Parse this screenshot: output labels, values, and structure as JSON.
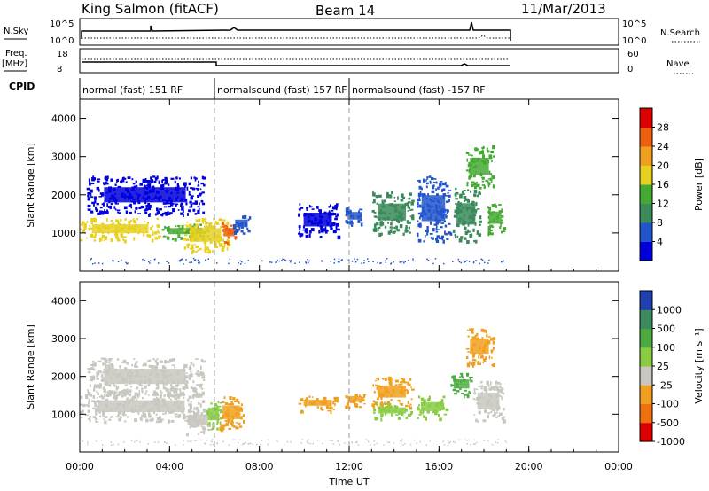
{
  "header": {
    "station": "King Salmon (fitACF)",
    "beam": "Beam 14",
    "date": "11/Mar/2013"
  },
  "summary": {
    "nsky_label": "N.Sky",
    "nsky_ticks": [
      "10^5",
      "10^0"
    ],
    "nsearch_label": "N.Search",
    "nsearch_ticks": [
      "10^5",
      "10^0"
    ],
    "freq_label": "Freq.",
    "freq_unit": "[MHz]",
    "freq_ticks": [
      "18",
      "8"
    ],
    "nave_label": "Nave",
    "nave_ticks": [
      "60",
      "0"
    ],
    "cpid_label": "CPID",
    "cpid_segments": [
      {
        "label": "normal (fast) 151 RF",
        "start": 0,
        "end": 6
      },
      {
        "label": "normalsound (fast) 157 RF",
        "start": 6,
        "end": 12
      },
      {
        "label": "normalsound (fast) -157 RF",
        "start": 12,
        "end": 19
      }
    ]
  },
  "chart_data": [
    {
      "type": "heatmap",
      "name": "power",
      "ylabel": "Slant Range [km]",
      "xlabel": "",
      "xlim": [
        0,
        24
      ],
      "ylim": [
        0,
        4500
      ],
      "yticks": [
        "1000",
        "2000",
        "3000",
        "4000"
      ],
      "colorbar": {
        "label": "Power [dB]",
        "ticks": [
          "4",
          "8",
          "12",
          "16",
          "20",
          "24",
          "28"
        ],
        "colors": [
          "#0000dd",
          "#2255cc",
          "#3a8a5a",
          "#44aa33",
          "#e8d020",
          "#f0a020",
          "#ee6010",
          "#dd0000"
        ]
      },
      "patches": [
        {
          "t0": 0.0,
          "t1": 3.6,
          "r0": 820,
          "r1": 1400,
          "level": 4
        },
        {
          "t0": 3.6,
          "t1": 5.8,
          "r0": 850,
          "r1": 1250,
          "level": 3
        },
        {
          "t0": 4.6,
          "t1": 6.6,
          "r0": 500,
          "r1": 1400,
          "level": 4
        },
        {
          "t0": 6.3,
          "t1": 7.0,
          "r0": 750,
          "r1": 1300,
          "level": 6
        },
        {
          "t0": 0.3,
          "t1": 5.5,
          "r0": 1500,
          "r1": 2500,
          "level": 0
        },
        {
          "t0": 6.8,
          "t1": 7.6,
          "r0": 1000,
          "r1": 1500,
          "level": 1
        },
        {
          "t0": 9.7,
          "t1": 11.5,
          "r0": 900,
          "r1": 1800,
          "level": 0
        },
        {
          "t0": 11.8,
          "t1": 12.7,
          "r0": 1200,
          "r1": 1700,
          "level": 1
        },
        {
          "t0": 13.0,
          "t1": 14.8,
          "r0": 1000,
          "r1": 2100,
          "level": 2
        },
        {
          "t0": 15.0,
          "t1": 16.5,
          "r0": 800,
          "r1": 2500,
          "level": 1
        },
        {
          "t0": 16.6,
          "t1": 17.8,
          "r0": 800,
          "r1": 2200,
          "level": 2
        },
        {
          "t0": 17.2,
          "t1": 18.4,
          "r0": 2200,
          "r1": 3300,
          "level": 3
        },
        {
          "t0": 18.1,
          "t1": 18.9,
          "r0": 1000,
          "r1": 1800,
          "level": 3
        }
      ]
    },
    {
      "type": "heatmap",
      "name": "velocity",
      "ylabel": "Slant Range [km]",
      "xlabel": "Time UT",
      "xlim": [
        0,
        24
      ],
      "ylim": [
        0,
        4500
      ],
      "yticks": [
        "1000",
        "2000",
        "3000",
        "4000"
      ],
      "xticks": [
        "00:00",
        "04:00",
        "08:00",
        "12:00",
        "16:00",
        "20:00",
        "00:00"
      ],
      "colorbar": {
        "label": "Velocity [m s⁻¹]",
        "ticks": [
          "1000",
          "500",
          "100",
          "25",
          "-25",
          "-100",
          "-500",
          "-1000"
        ],
        "colors": [
          "#2040b0",
          "#3c8a60",
          "#4caa40",
          "#88cc44",
          "#c8c8c0",
          "#f0a020",
          "#f07010",
          "#dd0000"
        ]
      },
      "patches": [
        {
          "t0": 0.0,
          "t1": 5.5,
          "r0": 820,
          "r1": 1600,
          "level": 4
        },
        {
          "t0": 0.3,
          "t1": 5.5,
          "r0": 1500,
          "r1": 2500,
          "level": 4
        },
        {
          "t0": 4.6,
          "t1": 5.9,
          "r0": 500,
          "r1": 1200,
          "level": 4
        },
        {
          "t0": 5.6,
          "t1": 6.3,
          "r0": 600,
          "r1": 1400,
          "level": 3
        },
        {
          "t0": 6.2,
          "t1": 7.3,
          "r0": 600,
          "r1": 1500,
          "level": 5
        },
        {
          "t0": 9.7,
          "t1": 11.5,
          "r0": 1100,
          "r1": 1500,
          "level": 5
        },
        {
          "t0": 11.8,
          "t1": 12.7,
          "r0": 1200,
          "r1": 1600,
          "level": 5
        },
        {
          "t0": 13.0,
          "t1": 14.8,
          "r0": 1200,
          "r1": 2000,
          "level": 5
        },
        {
          "t0": 13.0,
          "t1": 14.8,
          "r0": 900,
          "r1": 1300,
          "level": 3
        },
        {
          "t0": 15.0,
          "t1": 16.3,
          "r0": 900,
          "r1": 1500,
          "level": 3
        },
        {
          "t0": 16.5,
          "t1": 17.5,
          "r0": 1500,
          "r1": 2100,
          "level": 2
        },
        {
          "t0": 17.2,
          "t1": 18.4,
          "r0": 2300,
          "r1": 3300,
          "level": 5
        },
        {
          "t0": 17.5,
          "t1": 18.9,
          "r0": 800,
          "r1": 1900,
          "level": 4
        }
      ]
    }
  ]
}
